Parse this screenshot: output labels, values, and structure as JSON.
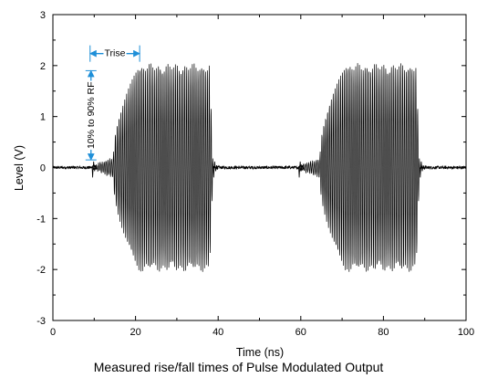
{
  "chart_data": {
    "type": "line",
    "title": "Measured rise/fall times of Pulse Modulated Output",
    "xlabel": "Time (ns)",
    "ylabel": "Level (V)",
    "xlim": [
      0,
      100
    ],
    "ylim": [
      -3,
      3
    ],
    "xticks": [
      0,
      20,
      40,
      60,
      80,
      100
    ],
    "yticks": [
      -3,
      -2,
      -1,
      0,
      1,
      2,
      3
    ],
    "grid": false,
    "legend": "none",
    "series": [
      {
        "pulses": [
          {
            "start_ns": 9.5,
            "full_amplitude_ns": 21.0,
            "stop_ns": 38.0
          },
          {
            "start_ns": 59.5,
            "full_amplitude_ns": 71.0,
            "stop_ns": 88.0
          }
        ],
        "peak_amplitude_v": 2.05,
        "baseline_v": 0,
        "color": "#000000"
      }
    ],
    "annotations": {
      "rise_label": "Trise",
      "rise_from_ns": 9,
      "rise_to_ns": 21,
      "rise_level_v": 2.2,
      "amplitude_label": "10% to 90% RF",
      "amplitude_from_v": 0.15,
      "amplitude_to_v": 1.9,
      "amplitude_x_ns": 9,
      "arrow_color": "#1e8fd8"
    }
  }
}
